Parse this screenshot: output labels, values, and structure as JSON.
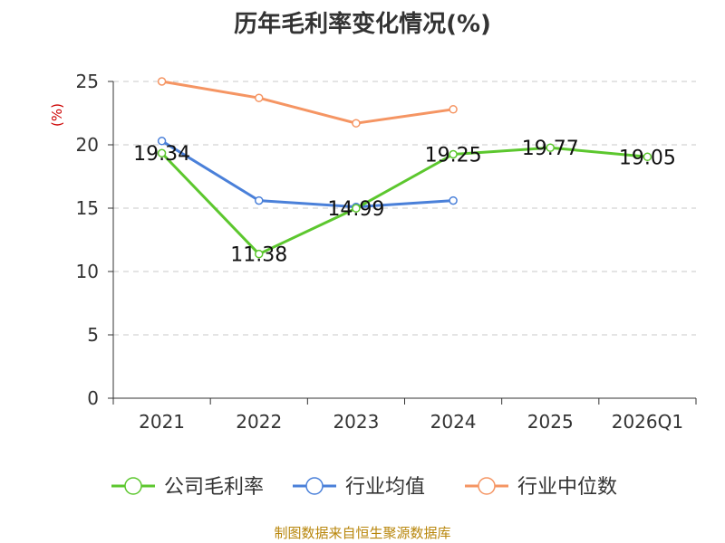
{
  "colors": {
    "grid": "#c8c8c8",
    "axis": "#333333",
    "text": "#333333",
    "ylabel": "#cc0000",
    "source": "#b8860b"
  },
  "chart_data": {
    "type": "line",
    "title": "历年毛利率变化情况(%)",
    "ylabel": "(%)",
    "xlabel": "",
    "categories": [
      "2021",
      "2022",
      "2023",
      "2024",
      "2025",
      "2026Q1"
    ],
    "ylim": [
      0,
      25
    ],
    "yticks": [
      0,
      5,
      10,
      15,
      20,
      25
    ],
    "grid": true,
    "legend_position": "bottom",
    "series": [
      {
        "name": "公司毛利率",
        "color": "#5cc72e",
        "values": [
          19.34,
          11.38,
          14.99,
          19.25,
          19.77,
          19.05
        ],
        "labels": [
          "19.34",
          "11.38",
          "14.99",
          "19.25",
          "19.77",
          "19.05"
        ]
      },
      {
        "name": "行业均值",
        "color": "#4a80d9",
        "values": [
          20.3,
          15.6,
          15.1,
          15.6,
          null,
          null
        ]
      },
      {
        "name": "行业中位数",
        "color": "#f59563",
        "values": [
          25.0,
          23.7,
          21.7,
          22.8,
          null,
          null
        ]
      }
    ]
  },
  "source_note": "制图数据来自恒生聚源数据库"
}
